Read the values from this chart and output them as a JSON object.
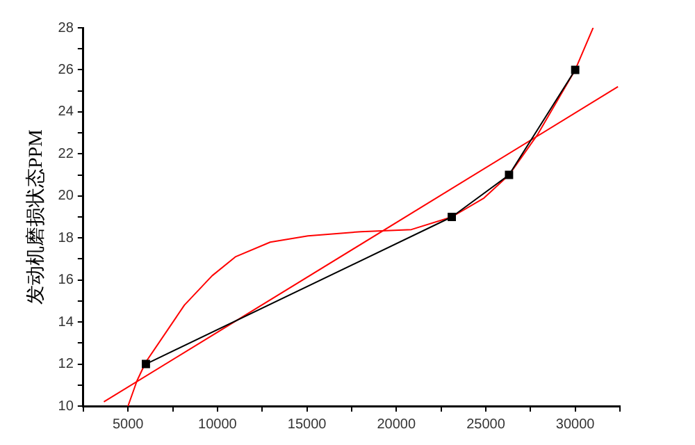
{
  "chart_data": {
    "type": "line",
    "ylabel": "发动机磨损状态PPM",
    "xlim": [
      2500,
      32500
    ],
    "ylim": [
      10,
      28
    ],
    "xticks": [
      {
        "value": 2500,
        "label": null
      },
      5000,
      {
        "value": 7500,
        "label": null
      },
      10000,
      {
        "value": 12500,
        "label": null
      },
      15000,
      {
        "value": 17500,
        "label": null
      },
      20000,
      {
        "value": 22500,
        "label": null
      },
      25000,
      {
        "value": 27500,
        "label": null
      },
      30000,
      {
        "value": 32500,
        "label": null
      }
    ],
    "yticks": [
      10,
      {
        "value": 11,
        "label": null
      },
      12,
      {
        "value": 13,
        "label": null
      },
      14,
      {
        "value": 15,
        "label": null
      },
      16,
      {
        "value": 17,
        "label": null
      },
      18,
      {
        "value": 19,
        "label": null
      },
      20,
      {
        "value": 21,
        "label": null
      },
      22,
      {
        "value": 23,
        "label": null
      },
      24,
      {
        "value": 25,
        "label": null
      },
      26,
      {
        "value": 27,
        "label": null
      },
      28
    ],
    "grid": false,
    "legend": false,
    "line_style": "solid",
    "series": [
      {
        "color": "#000000",
        "marker": "square",
        "x": [
          6000,
          23100,
          26300,
          30000
        ],
        "values": [
          12,
          19,
          21,
          26
        ]
      },
      {
        "color": "#ff0000",
        "marker": "none",
        "x": [
          5000,
          5500,
          6000,
          8150,
          9700,
          11000,
          12950,
          15060,
          18020,
          20840,
          23100,
          24900,
          26300,
          27880,
          30000,
          31000
        ],
        "values": [
          10,
          11.2,
          12.1,
          14.8,
          16.2,
          17.1,
          17.8,
          18.1,
          18.3,
          18.4,
          19,
          19.9,
          21,
          22.9,
          26,
          28
        ]
      },
      {
        "color": "#ff0000",
        "marker": "none",
        "x": [
          3650,
          32390
        ],
        "values": [
          10.2,
          25.2
        ]
      }
    ]
  }
}
